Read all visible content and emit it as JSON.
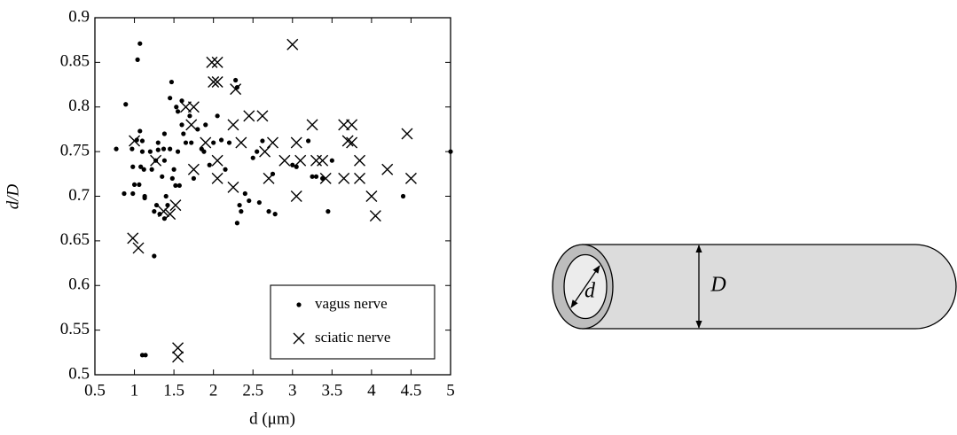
{
  "chart_data": {
    "type": "scatter",
    "x_label": "d (μm)",
    "y_label": "d/D",
    "xlim": [
      0.5,
      5
    ],
    "ylim": [
      0.5,
      0.9
    ],
    "xticks": [
      0.5,
      1,
      1.5,
      2,
      2.5,
      3,
      3.5,
      4,
      4.5,
      5
    ],
    "yticks": [
      0.5,
      0.55,
      0.6,
      0.65,
      0.7,
      0.75,
      0.8,
      0.85,
      0.9
    ],
    "grid": false,
    "legend": "lower right",
    "series": [
      {
        "name": "vagus nerve",
        "color": "#000000",
        "marker": "dot",
        "x": [
          0.77,
          0.89,
          0.87,
          0.97,
          0.98,
          0.98,
          1.0,
          1.03,
          1.04,
          1.07,
          1.07,
          1.08,
          1.06,
          1.1,
          1.1,
          1.12,
          1.13,
          1.13,
          1.1,
          1.14,
          1.2,
          1.22,
          1.25,
          1.25,
          1.27,
          1.28,
          1.3,
          1.3,
          1.32,
          1.35,
          1.37,
          1.38,
          1.38,
          1.38,
          1.4,
          1.42,
          1.45,
          1.45,
          1.47,
          1.48,
          1.5,
          1.52,
          1.53,
          1.55,
          1.55,
          1.57,
          1.6,
          1.6,
          1.62,
          1.65,
          1.7,
          1.72,
          1.75,
          1.8,
          1.85,
          1.88,
          1.9,
          1.95,
          2.0,
          2.05,
          2.1,
          2.15,
          2.2,
          2.28,
          2.3,
          2.3,
          2.33,
          2.35,
          2.4,
          2.45,
          2.5,
          2.55,
          2.58,
          2.62,
          2.7,
          2.75,
          2.78,
          3.0,
          3.05,
          3.2,
          3.25,
          3.3,
          3.38,
          3.45,
          3.5,
          4.4,
          5.0
        ],
        "y": [
          0.753,
          0.803,
          0.703,
          0.753,
          0.733,
          0.703,
          0.713,
          0.763,
          0.853,
          0.871,
          0.773,
          0.733,
          0.713,
          0.762,
          0.75,
          0.73,
          0.7,
          0.698,
          0.522,
          0.522,
          0.75,
          0.73,
          0.683,
          0.633,
          0.74,
          0.69,
          0.76,
          0.752,
          0.68,
          0.722,
          0.753,
          0.77,
          0.74,
          0.675,
          0.7,
          0.69,
          0.753,
          0.81,
          0.828,
          0.72,
          0.73,
          0.712,
          0.8,
          0.795,
          0.75,
          0.712,
          0.78,
          0.807,
          0.77,
          0.76,
          0.79,
          0.76,
          0.72,
          0.775,
          0.753,
          0.75,
          0.78,
          0.735,
          0.76,
          0.79,
          0.763,
          0.73,
          0.76,
          0.83,
          0.822,
          0.67,
          0.69,
          0.683,
          0.703,
          0.695,
          0.743,
          0.75,
          0.693,
          0.762,
          0.683,
          0.725,
          0.68,
          0.735,
          0.733,
          0.762,
          0.722,
          0.722,
          0.72,
          0.683,
          0.74,
          0.7,
          0.75
        ]
      },
      {
        "name": "sciatic nerve",
        "color": "#000000",
        "marker": "cross",
        "x": [
          1.0,
          0.98,
          1.05,
          1.27,
          1.37,
          1.52,
          1.45,
          1.55,
          1.55,
          1.65,
          1.75,
          1.72,
          1.75,
          1.9,
          1.98,
          2.05,
          2.0,
          2.05,
          2.05,
          2.05,
          2.28,
          2.25,
          2.25,
          2.35,
          2.45,
          2.62,
          2.65,
          2.7,
          2.75,
          2.9,
          3.0,
          3.05,
          3.05,
          3.1,
          3.25,
          3.3,
          3.38,
          3.42,
          3.65,
          3.65,
          3.7,
          3.75,
          3.75,
          3.85,
          3.85,
          4.0,
          4.05,
          4.2,
          4.45,
          4.5
        ],
        "y": [
          0.762,
          0.653,
          0.642,
          0.74,
          0.683,
          0.69,
          0.68,
          0.53,
          0.52,
          0.8,
          0.8,
          0.78,
          0.73,
          0.76,
          0.85,
          0.85,
          0.828,
          0.828,
          0.74,
          0.72,
          0.82,
          0.78,
          0.71,
          0.76,
          0.79,
          0.79,
          0.75,
          0.72,
          0.76,
          0.74,
          0.87,
          0.7,
          0.76,
          0.74,
          0.78,
          0.74,
          0.74,
          0.72,
          0.72,
          0.78,
          0.762,
          0.78,
          0.76,
          0.74,
          0.72,
          0.7,
          0.678,
          0.73,
          0.77,
          0.72
        ]
      }
    ]
  },
  "diagram": {
    "inner_label": "d",
    "outer_label": "D"
  }
}
